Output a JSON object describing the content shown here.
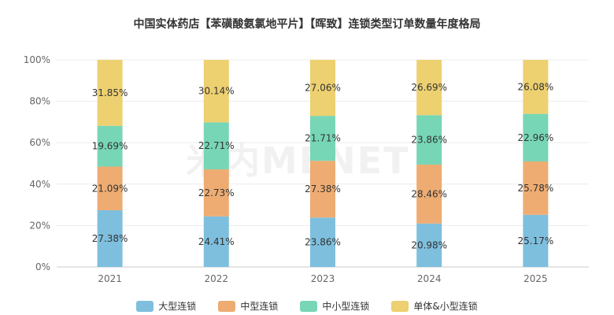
{
  "watermark": "米内MENET",
  "chart_data": {
    "type": "bar",
    "stacked": true,
    "title": "中国实体药店【苯磺酸氨氯地平片】【晖致】连锁类型订单数量年度格局",
    "categories": [
      "2021",
      "2022",
      "2023",
      "2024",
      "2025"
    ],
    "ylim": [
      0,
      100
    ],
    "yticks": [
      "0%",
      "20%",
      "40%",
      "60%",
      "80%",
      "100%"
    ],
    "grid": true,
    "legend_position": "bottom",
    "series": [
      {
        "name": "大型连锁",
        "color": "#7ebfde",
        "values": [
          27.38,
          24.41,
          23.86,
          20.98,
          25.17
        ],
        "labels": [
          "27.38%",
          "24.41%",
          "23.86%",
          "20.98%",
          "25.17%"
        ]
      },
      {
        "name": "中型连锁",
        "color": "#eeac72",
        "values": [
          21.09,
          22.73,
          27.38,
          28.46,
          25.78
        ],
        "labels": [
          "21.09%",
          "22.73%",
          "27.38%",
          "28.46%",
          "25.78%"
        ]
      },
      {
        "name": "中小型连锁",
        "color": "#77d6b5",
        "values": [
          19.69,
          22.71,
          21.71,
          23.86,
          22.96
        ],
        "labels": [
          "19.69%",
          "22.71%",
          "21.71%",
          "23.86%",
          "22.96%"
        ]
      },
      {
        "name": "单体&小型连锁",
        "color": "#edd070",
        "values": [
          31.85,
          30.14,
          27.06,
          26.69,
          26.08
        ],
        "labels": [
          "31.85%",
          "30.14%",
          "27.06%",
          "26.69%",
          "26.08%"
        ]
      }
    ]
  }
}
